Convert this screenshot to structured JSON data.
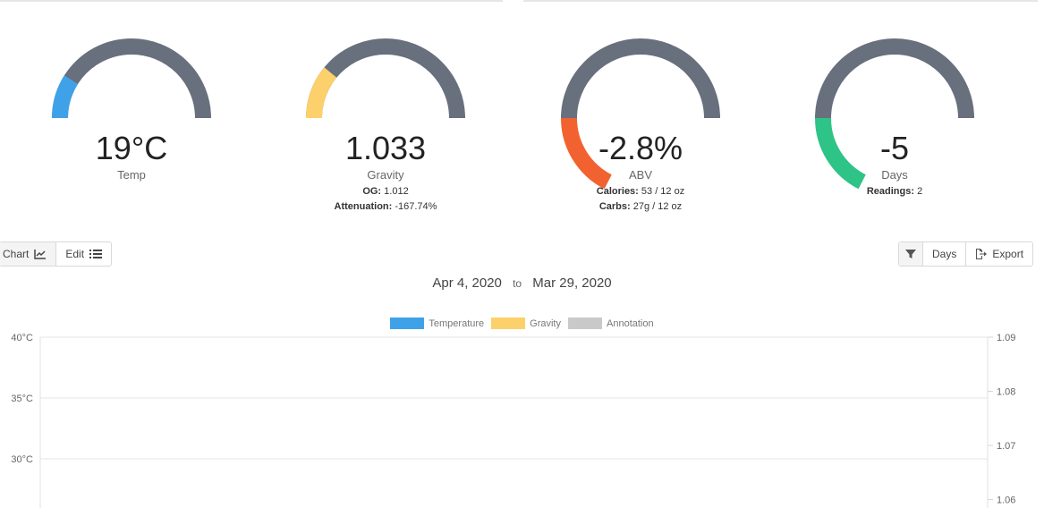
{
  "gauges": [
    {
      "value": "19°C",
      "label": "Temp",
      "color": "#3fa2e8",
      "fraction": 0.18
    },
    {
      "value": "1.033",
      "label": "Gravity",
      "color": "#fcd06a",
      "fraction": 0.22,
      "meta": [
        {
          "key": "OG:",
          "val": "1.012"
        },
        {
          "key": "Attenuation:",
          "val": "-167.74%"
        }
      ]
    },
    {
      "value": "-2.8%",
      "label": "ABV",
      "color": "#f26230",
      "fraction": -0.35,
      "meta": [
        {
          "key": "Calories:",
          "val": "53 / 12 oz"
        },
        {
          "key": "Carbs:",
          "val": "27g / 12 oz"
        }
      ]
    },
    {
      "value": "-5",
      "label": "Days",
      "color": "#2ec387",
      "fraction": -0.35,
      "meta": [
        {
          "key": "Readings:",
          "val": "2"
        }
      ]
    }
  ],
  "gauge_track_color": "#686f7d",
  "view_toggle": {
    "chart_label": "Chart",
    "edit_label": "Edit"
  },
  "toolbar": {
    "days_label": "Days",
    "export_label": "Export"
  },
  "date_range": {
    "start": "Apr 4, 2020",
    "to": "to",
    "end": "Mar 29, 2020"
  },
  "chart_data": {
    "type": "line",
    "series": [
      {
        "name": "Temperature",
        "color": "#3fa2e8",
        "values": []
      },
      {
        "name": "Gravity",
        "color": "#fcd06a",
        "values": []
      },
      {
        "name": "Annotation",
        "color": "#c9c9c9",
        "values": []
      }
    ],
    "y_left_ticks": [
      "40°C",
      "35°C",
      "30°C"
    ],
    "y_right_ticks": [
      "1.09",
      "1.08",
      "1.07",
      "1.06"
    ],
    "grid": true,
    "legend": "top-center"
  }
}
